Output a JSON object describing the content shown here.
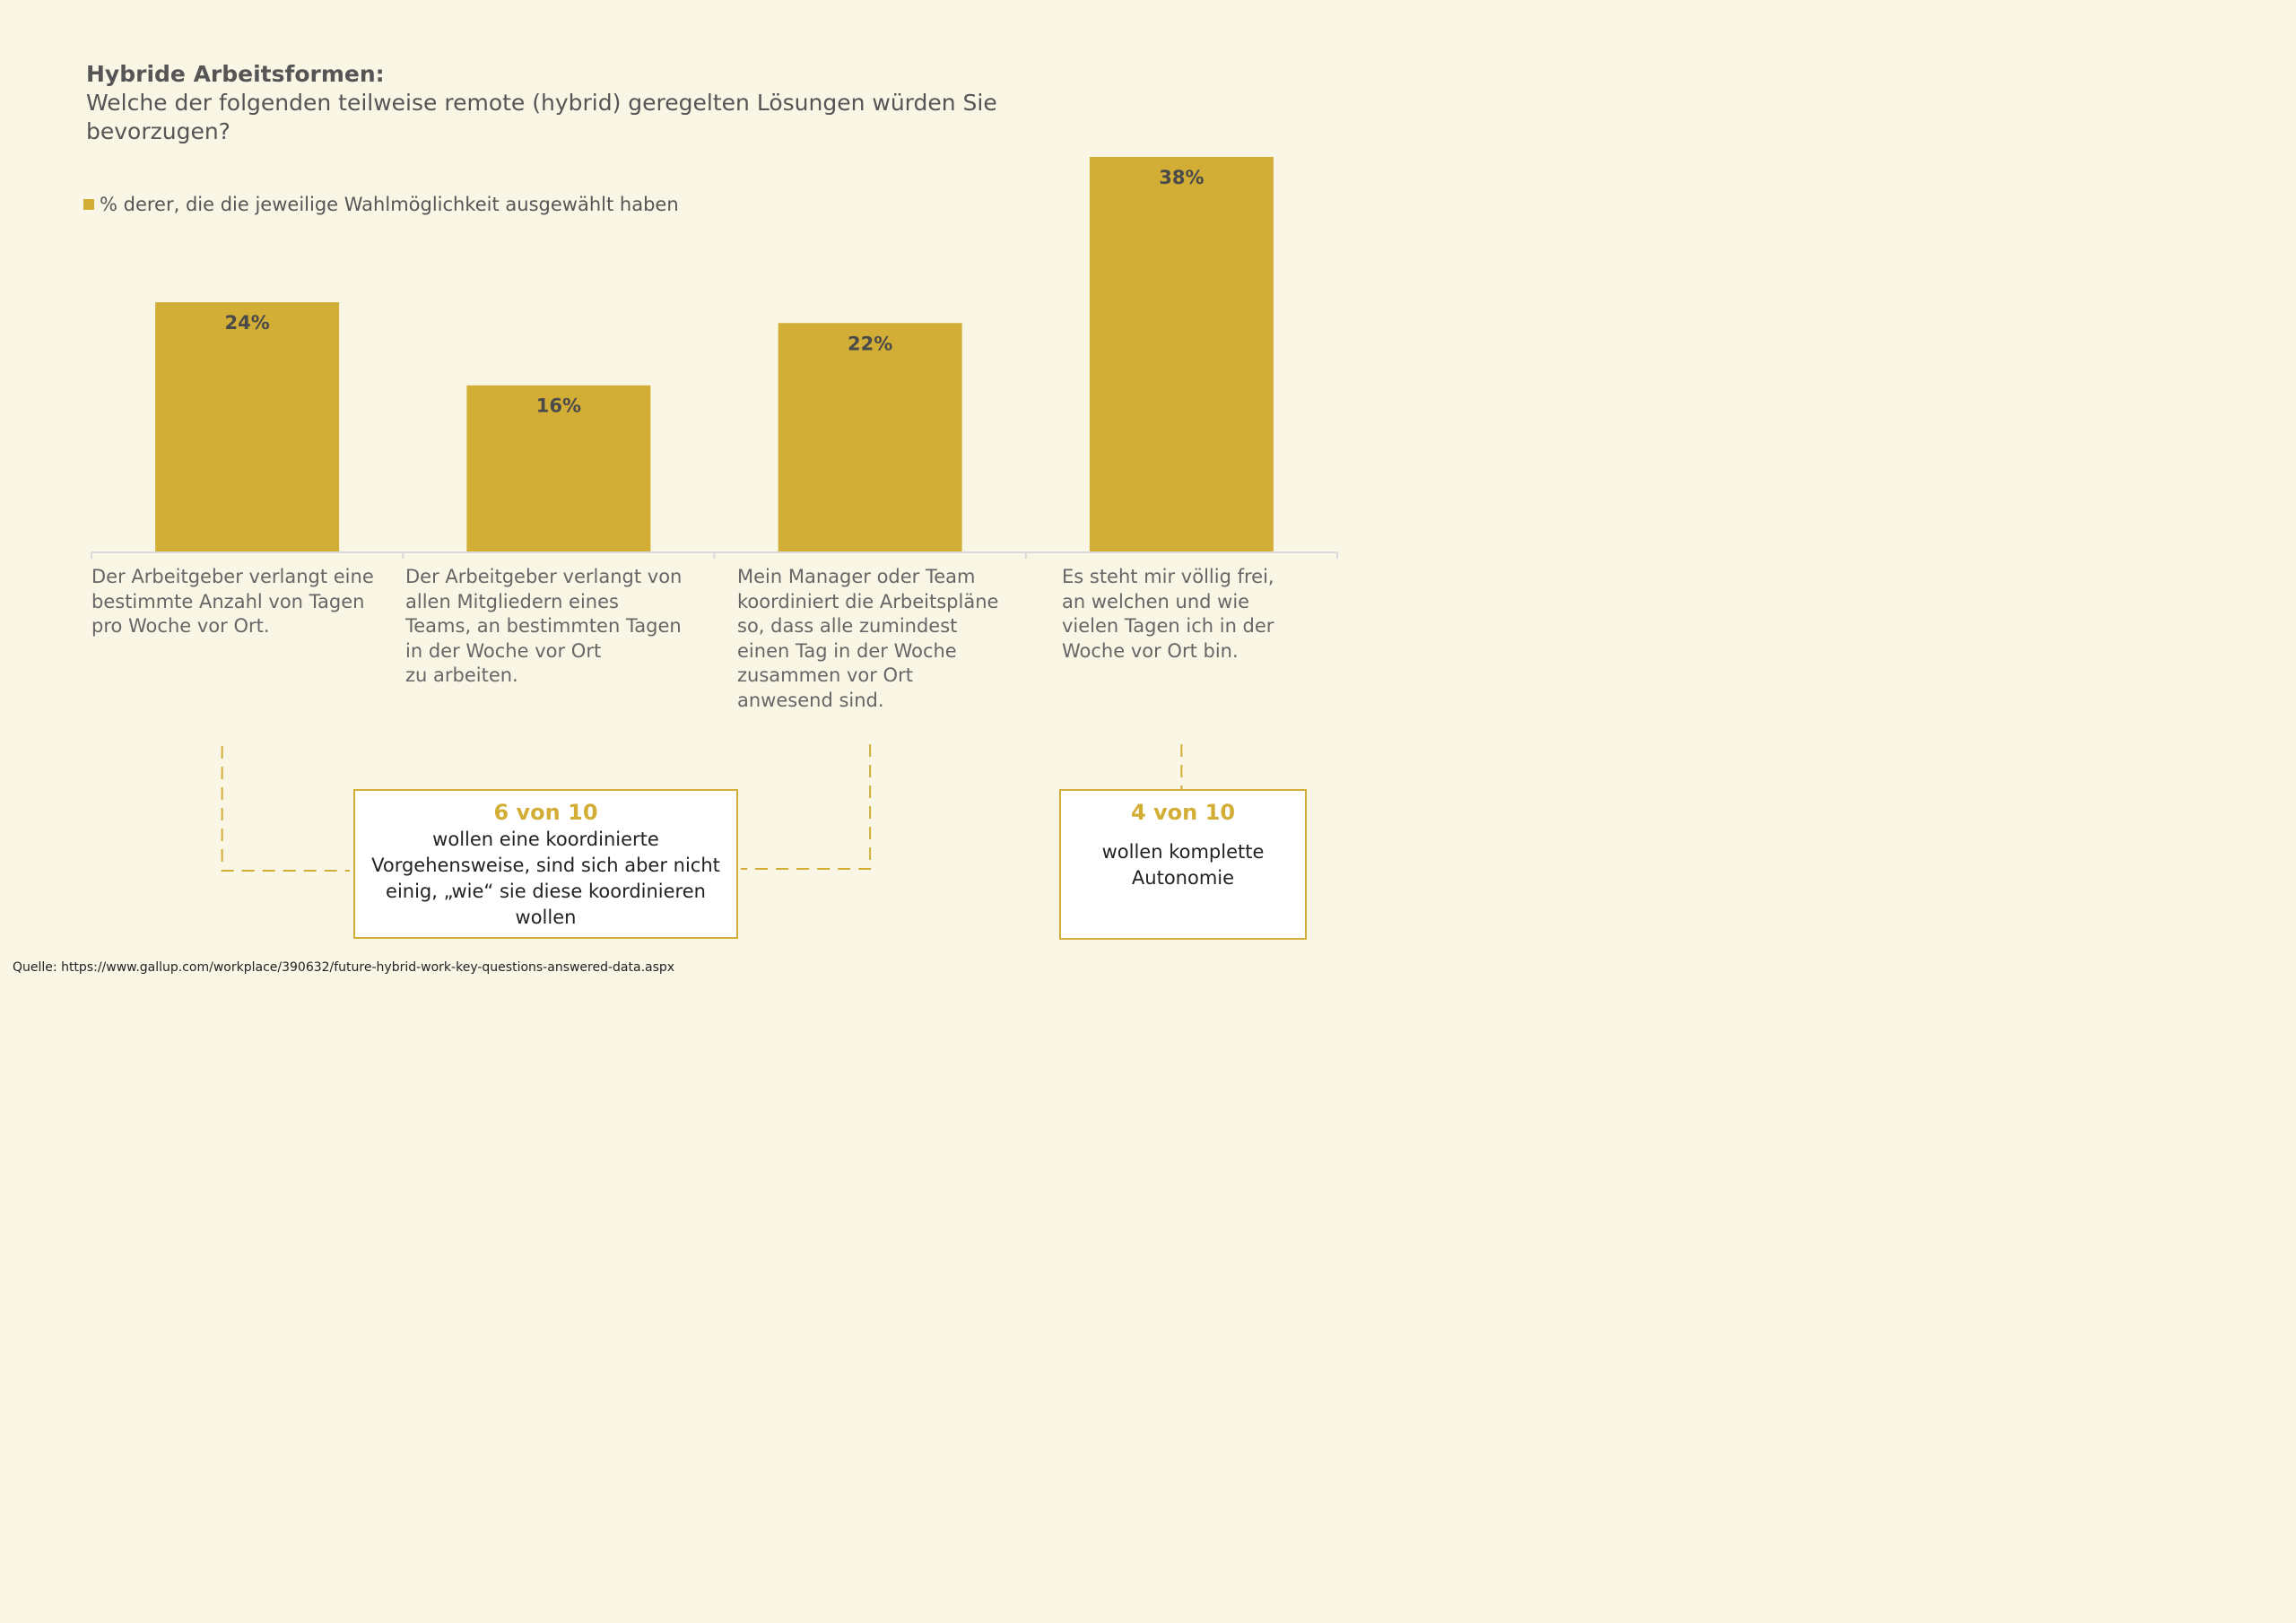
{
  "title_bold": "Hybride Arbeitsformen:",
  "title_sub": "Welche der folgenden teilweise remote (hybrid) geregelten Lösungen würden Sie bevorzugen?",
  "legend_label": "% derer, die die jeweilige Wahlmöglichkeit ausgewählt haben",
  "colors": {
    "bar": "#d2ae37",
    "accent": "#d2ae37",
    "background": "#faf6e6",
    "axis": "#d9d9d9"
  },
  "chart_data": {
    "type": "bar",
    "categories": [
      "Der Arbeitgeber verlangt eine\nbestimmte Anzahl von Tagen\npro Woche vor Ort.",
      "Der Arbeitgeber verlangt von\nallen Mitgliedern eines\nTeams, an bestimmten Tagen\nin der Woche vor Ort\nzu arbeiten.",
      "Mein Manager oder Team\nkoordiniert die Arbeitspläne\nso, dass alle zumindest\neinen Tag in der Woche\nzusammen vor Ort\nanwesend sind.",
      "Es steht mir völlig frei,\nan welchen und wie\nvielen Tagen ich in der\nWoche vor Ort bin."
    ],
    "values": [
      24,
      16,
      22,
      38
    ],
    "data_labels": [
      "24%",
      "16%",
      "22%",
      "38%"
    ],
    "ylim": [
      0,
      38
    ],
    "legend": "% derer, die die jeweilige Wahlmöglichkeit ausgewählt haben",
    "legend_position": "top-left",
    "grid": false
  },
  "callouts": [
    {
      "head": "6 von 10",
      "text": "wollen eine koordinierte\nVorgehensweise, sind sich aber nicht\neinig, „wie“ sie diese koordinieren\nwollen"
    },
    {
      "head": "4 von 10",
      "text": "wollen komplette\nAutonomie"
    }
  ],
  "source": "Quelle: https://www.gallup.com/workplace/390632/future-hybrid-work-key-questions-answered-data.aspx"
}
